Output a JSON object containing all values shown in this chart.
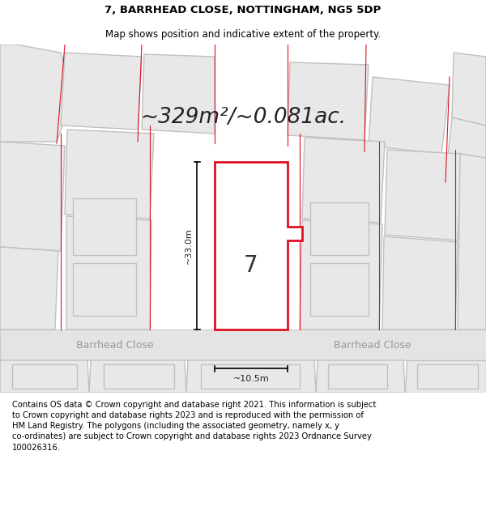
{
  "title": "7, BARRHEAD CLOSE, NOTTINGHAM, NG5 5DP",
  "subtitle": "Map shows position and indicative extent of the property.",
  "area_text": "~329m²/~0.081ac.",
  "dim_width": "~10.5m",
  "dim_height": "~33.0m",
  "street_label": "Barrhead Close",
  "property_number": "7",
  "bg_color": "#ffffff",
  "map_bg": "#f0f0f0",
  "polygon_fill": "#e8e8e8",
  "polygon_fill_white": "#ffffff",
  "polygon_edge_gray": "#c0c0c0",
  "polygon_edge_red": "#dd1122",
  "street_color": "#e0e0e0",
  "footer_text": "Contains OS data © Crown copyright and database right 2021. This information is subject to Crown copyright and database rights 2023 and is reproduced with the permission of HM Land Registry. The polygons (including the associated geometry, namely x, y co-ordinates) are subject to Crown copyright and database rights 2023 Ordnance Survey 100026316.",
  "title_fontsize": 9.5,
  "subtitle_fontsize": 8.5,
  "area_fontsize": 19,
  "footer_fontsize": 7.2,
  "prop_number_fontsize": 20,
  "street_fontsize": 9
}
